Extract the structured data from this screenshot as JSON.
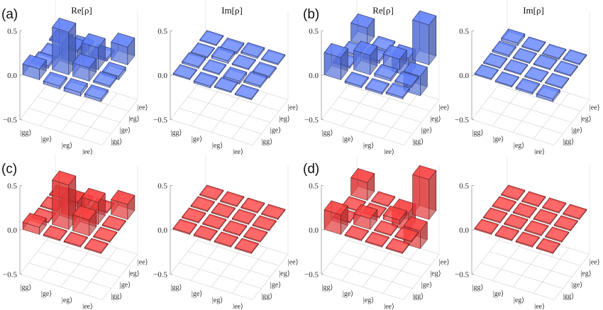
{
  "chart_data": [
    {
      "type": "bar3d",
      "panel_label": "(a)",
      "title": "Re[ρ]",
      "color": "#5b78e8",
      "zlim": [
        -0.5,
        0.5
      ],
      "zticks": [
        "0.5",
        "0.0",
        "−0.5"
      ],
      "x_labels": [
        "|gg⟩",
        "|ge⟩",
        "|eg⟩",
        "|ee⟩"
      ],
      "y_labels": [
        "|gg⟩",
        "|ge⟩",
        "|eg⟩",
        "|ee⟩"
      ],
      "values": [
        [
          0.12,
          0.03,
          -0.02,
          0.02
        ],
        [
          -0.03,
          0.48,
          0.15,
          0.03
        ],
        [
          -0.04,
          0.15,
          0.25,
          -0.03
        ],
        [
          -0.03,
          0.02,
          -0.04,
          0.2
        ]
      ]
    },
    {
      "type": "bar3d",
      "panel_label": "",
      "title": "Im[ρ]",
      "color": "#5b78e8",
      "zlim": [
        -0.5,
        0.5
      ],
      "zticks": [
        "0.5",
        "0.0",
        "−0.5"
      ],
      "x_labels": [
        "|gg⟩",
        "|ge⟩",
        "|eg⟩",
        "|ee⟩"
      ],
      "y_labels": [
        "|gg⟩",
        "|ge⟩",
        "|eg⟩",
        "|ee⟩"
      ],
      "values": [
        [
          0,
          0.02,
          -0.01,
          0.01
        ],
        [
          -0.02,
          0,
          0.03,
          -0.02
        ],
        [
          0.01,
          -0.03,
          0,
          0.02
        ],
        [
          -0.01,
          0.02,
          -0.02,
          0
        ]
      ]
    },
    {
      "type": "bar3d",
      "panel_label": "(b)",
      "title": "Re[ρ]",
      "color": "#5b78e8",
      "zlim": [
        -0.5,
        0.5
      ],
      "zticks": [
        "0.5",
        "0.0",
        "−0.5"
      ],
      "x_labels": [
        "|gg⟩",
        "|ge⟩",
        "|eg⟩",
        "|ee⟩"
      ],
      "y_labels": [
        "|gg⟩",
        "|ge⟩",
        "|eg⟩",
        "|ee⟩"
      ],
      "values": [
        [
          0.25,
          0.02,
          0.02,
          0.2
        ],
        [
          -0.02,
          0.22,
          0.03,
          0.02
        ],
        [
          -0.02,
          0.03,
          0.12,
          -0.2
        ],
        [
          0.02,
          0.02,
          -0.22,
          0.45
        ]
      ]
    },
    {
      "type": "bar3d",
      "panel_label": "",
      "title": "Im[ρ]",
      "color": "#5b78e8",
      "zlim": [
        -0.5,
        0.5
      ],
      "zticks": [
        "0.5",
        "0.0",
        "−0.5"
      ],
      "x_labels": [
        "|gg⟩",
        "|ge⟩",
        "|eg⟩",
        "|ee⟩"
      ],
      "y_labels": [
        "|gg⟩",
        "|ge⟩",
        "|eg⟩",
        "|ee⟩"
      ],
      "values": [
        [
          0,
          0.01,
          0.02,
          0.03
        ],
        [
          -0.01,
          0,
          0.01,
          0.01
        ],
        [
          -0.02,
          -0.01,
          0,
          -0.01
        ],
        [
          -0.03,
          -0.01,
          0.01,
          0
        ]
      ]
    },
    {
      "type": "bar3d",
      "panel_label": "(c)",
      "title": "",
      "color": "#f03c3c",
      "zlim": [
        -0.5,
        0.5
      ],
      "zticks": [
        "0.5",
        "0.0",
        "−0.5"
      ],
      "x_labels": [
        "|gg⟩",
        "|ge⟩",
        "|eg⟩",
        "|ee⟩"
      ],
      "y_labels": [
        "|gg⟩",
        "|ge⟩",
        "|eg⟩",
        "|ee⟩"
      ],
      "values": [
        [
          0.08,
          0,
          0,
          0
        ],
        [
          0,
          0.5,
          0.18,
          0
        ],
        [
          0,
          0.18,
          0.25,
          0
        ],
        [
          0,
          0,
          0,
          0.17
        ]
      ]
    },
    {
      "type": "bar3d",
      "panel_label": "",
      "title": "",
      "color": "#f03c3c",
      "zlim": [
        -0.5,
        0.5
      ],
      "zticks": [
        "0.5",
        "0.0",
        "−0.5"
      ],
      "x_labels": [
        "|gg⟩",
        "|ge⟩",
        "|eg⟩",
        "|ee⟩"
      ],
      "y_labels": [
        "|gg⟩",
        "|ge⟩",
        "|eg⟩",
        "|ee⟩"
      ],
      "values": [
        [
          0,
          0,
          0,
          0
        ],
        [
          0,
          0,
          0,
          0
        ],
        [
          0,
          0,
          0,
          0
        ],
        [
          0,
          0,
          0,
          0
        ]
      ]
    },
    {
      "type": "bar3d",
      "panel_label": "(d)",
      "title": "",
      "color": "#f03c3c",
      "zlim": [
        -0.5,
        0.5
      ],
      "zticks": [
        "0.5",
        "0.0",
        "−0.5"
      ],
      "x_labels": [
        "|gg⟩",
        "|ge⟩",
        "|eg⟩",
        "|ee⟩"
      ],
      "y_labels": [
        "|gg⟩",
        "|ge⟩",
        "|eg⟩",
        "|ee⟩"
      ],
      "values": [
        [
          0.22,
          0,
          0,
          0.2
        ],
        [
          0,
          0.12,
          0,
          0
        ],
        [
          0,
          0,
          0.05,
          -0.2
        ],
        [
          0,
          0,
          -0.2,
          0.45
        ]
      ]
    },
    {
      "type": "bar3d",
      "panel_label": "",
      "title": "",
      "color": "#f03c3c",
      "zlim": [
        -0.5,
        0.5
      ],
      "zticks": [
        "0.5",
        "0.0",
        "−0.5"
      ],
      "x_labels": [
        "|gg⟩",
        "|ge⟩",
        "|eg⟩",
        "|ee⟩"
      ],
      "y_labels": [
        "|gg⟩",
        "|ge⟩",
        "|eg⟩",
        "|ee⟩"
      ],
      "values": [
        [
          0,
          0,
          0,
          0
        ],
        [
          0,
          0,
          0,
          0
        ],
        [
          0,
          0,
          0,
          0
        ],
        [
          0,
          0,
          0,
          0
        ]
      ]
    }
  ]
}
